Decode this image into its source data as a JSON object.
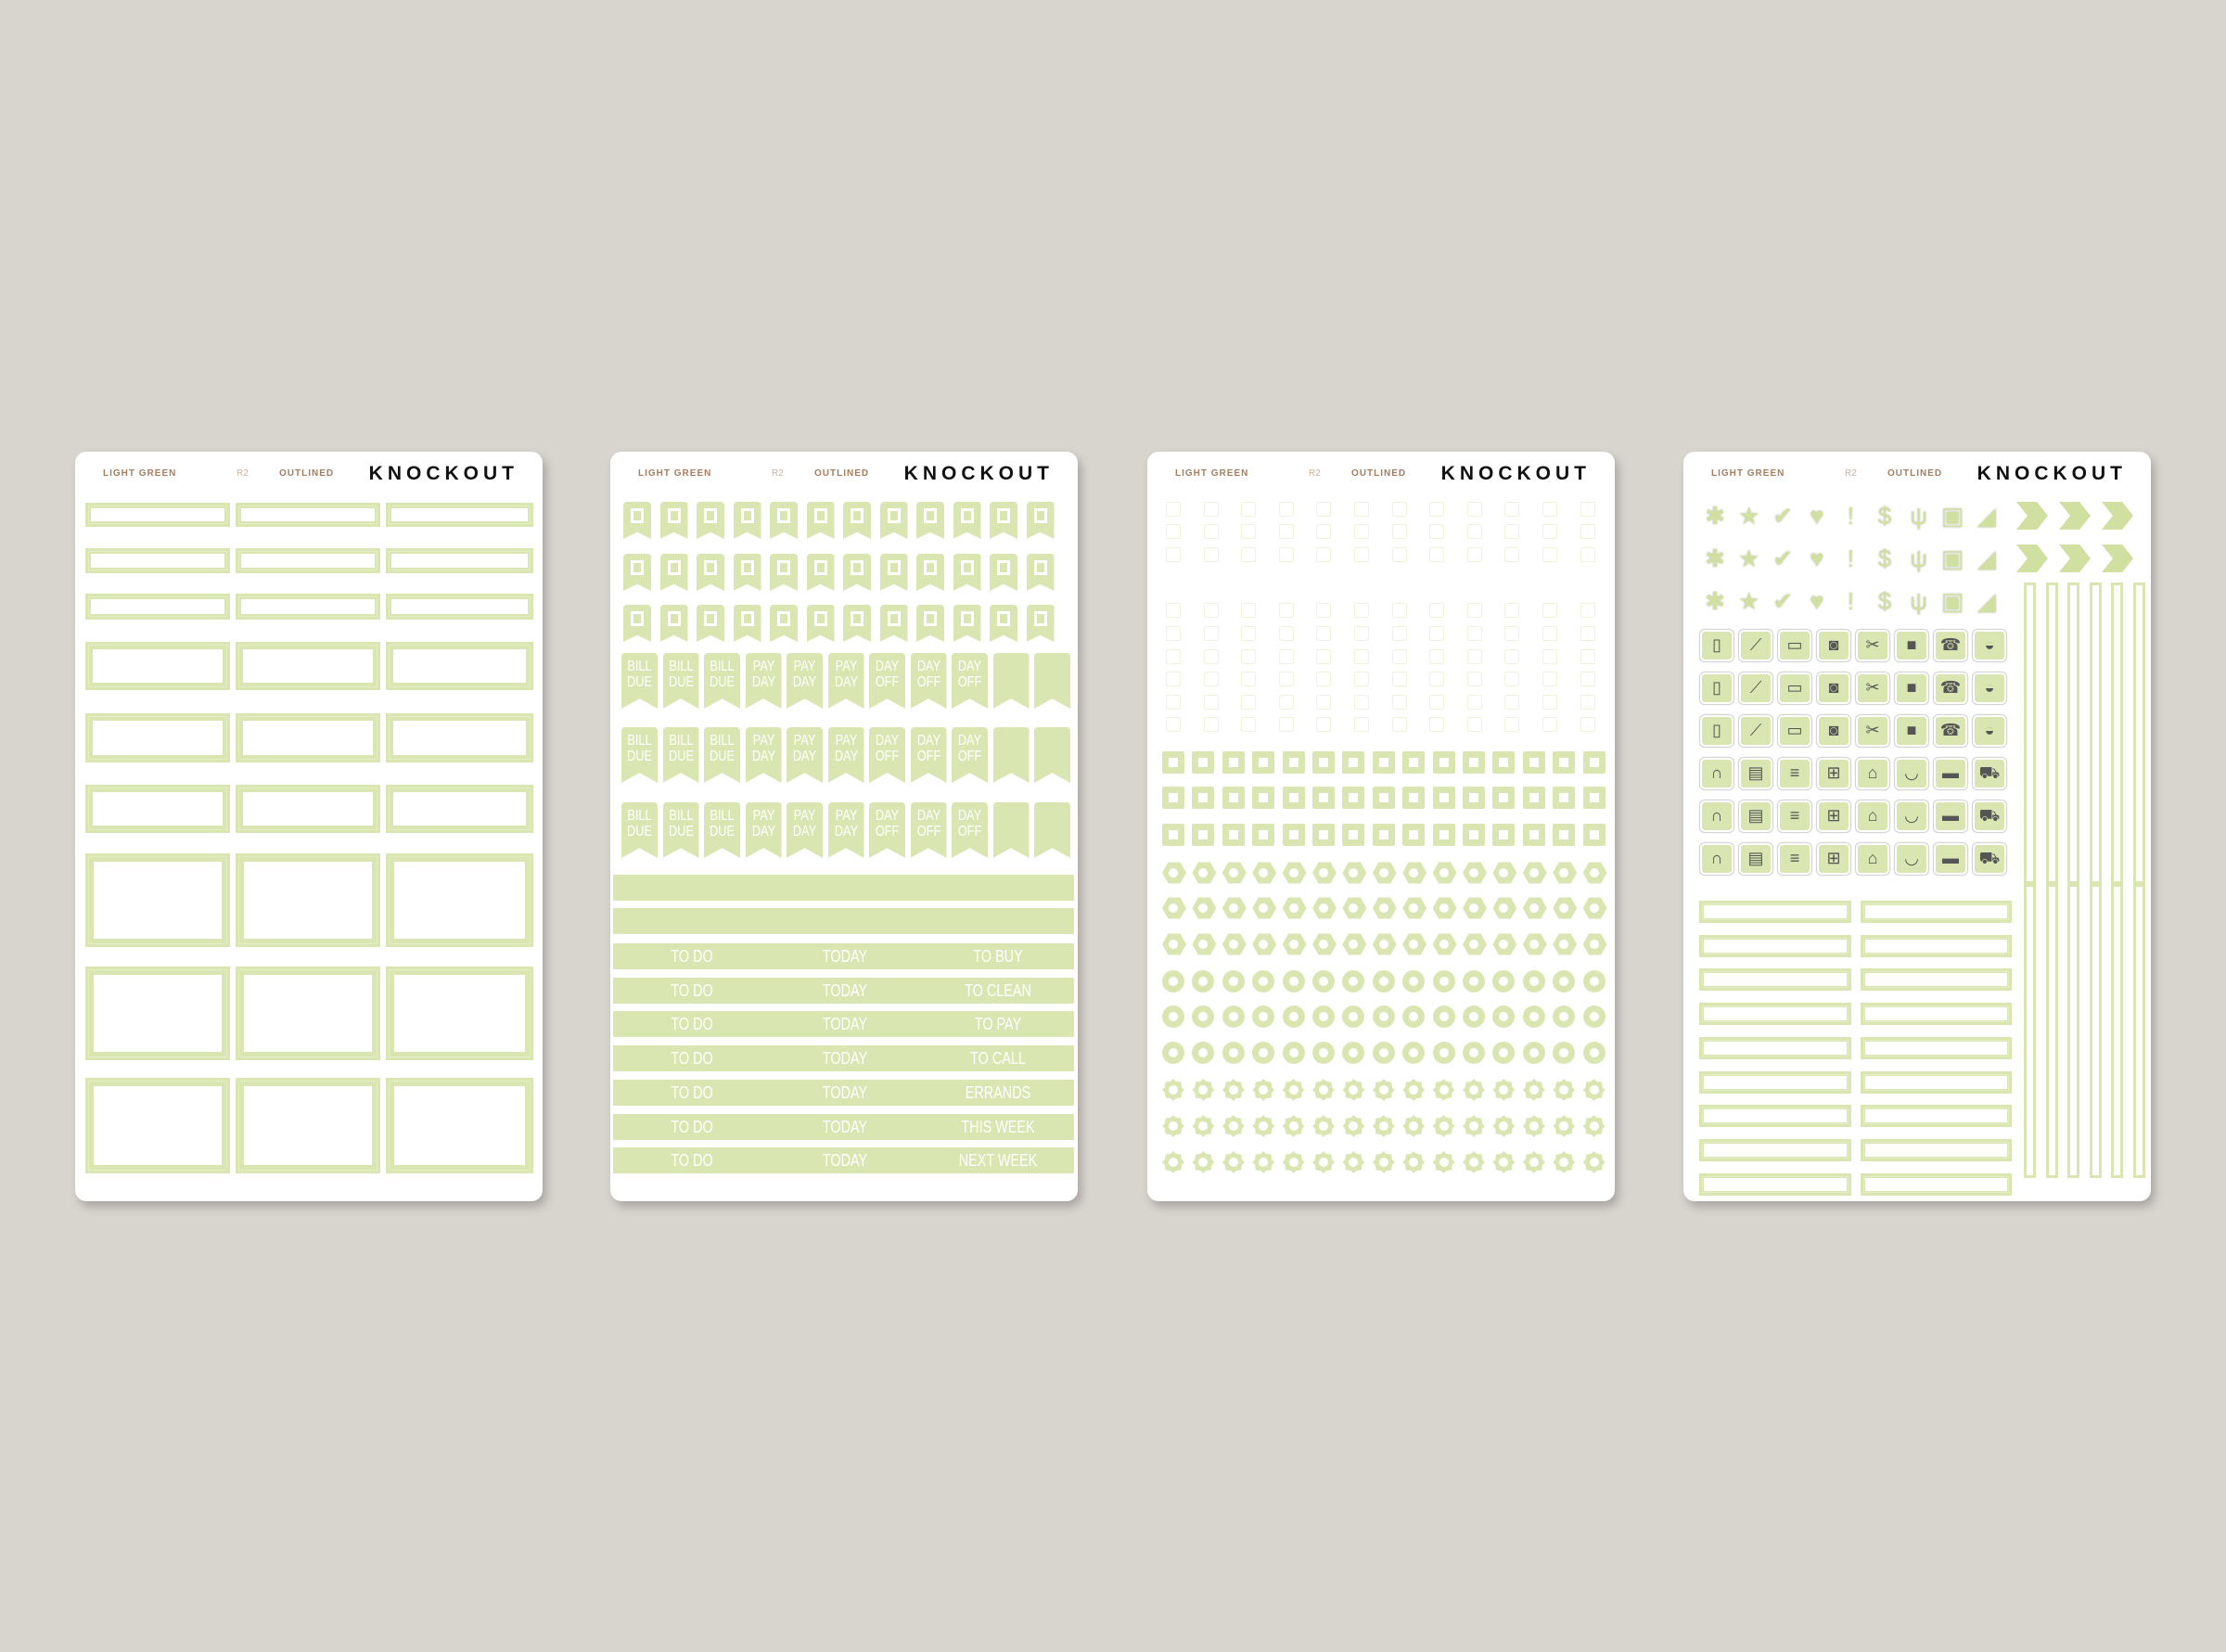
{
  "colors": {
    "background": "#d8d4ce",
    "sticker_green": "#dae6b1",
    "header_accent": "#a87d5e"
  },
  "sheets": [
    {
      "header": {
        "color": "LIGHT GREEN",
        "code": "R2",
        "style": "OUTLINED",
        "brand": "KNOCKOUT"
      }
    },
    {
      "header": {
        "color": "LIGHT GREEN",
        "code": "R2",
        "style": "OUTLINED",
        "brand": "KNOCKOUT"
      }
    },
    {
      "header": {
        "color": "LIGHT GREEN",
        "code": "R2",
        "style": "OUTLINED",
        "brand": "KNOCKOUT"
      }
    },
    {
      "header": {
        "color": "LIGHT GREEN",
        "code": "R2",
        "style": "OUTLINED",
        "brand": "KNOCKOUT"
      }
    }
  ],
  "sheet2": {
    "flag_labels": [
      [
        "BILL",
        "DUE"
      ],
      [
        "BILL",
        "DUE"
      ],
      [
        "BILL",
        "DUE"
      ],
      [
        "PAY",
        "DAY"
      ],
      [
        "PAY",
        "DAY"
      ],
      [
        "PAY",
        "DAY"
      ],
      [
        "DAY",
        "OFF"
      ],
      [
        "DAY",
        "OFF"
      ],
      [
        "DAY",
        "OFF"
      ],
      [
        "",
        ""
      ],
      [
        "",
        ""
      ]
    ],
    "bar_rows": [
      [
        "TO DO",
        "TODAY",
        "TO BUY"
      ],
      [
        "TO DO",
        "TODAY",
        "TO CLEAN"
      ],
      [
        "TO DO",
        "TODAY",
        "TO PAY"
      ],
      [
        "TO DO",
        "TODAY",
        "TO CALL"
      ],
      [
        "TO DO",
        "TODAY",
        "ERRANDS"
      ],
      [
        "TO DO",
        "TODAY",
        "THIS WEEK"
      ],
      [
        "TO DO",
        "TODAY",
        "NEXT WEEK"
      ]
    ]
  },
  "sheet3": {
    "shape_rows": [
      "square",
      "square",
      "square",
      "hexagon",
      "hexagon",
      "hexagon",
      "circle",
      "circle",
      "circle",
      "flower",
      "flower",
      "flower"
    ]
  },
  "sheet4": {
    "symbol_icons": [
      "asterisk-icon",
      "star-icon",
      "check-icon",
      "heart-icon",
      "exclamation-icon",
      "dollar-icon",
      "utensils-icon",
      "gift-icon",
      "sneaker-icon"
    ],
    "household_icons_a": [
      "trash-bin-icon",
      "vacuum-icon",
      "credit-card-icon",
      "washing-machine-icon",
      "scissors-icon",
      "video-call-icon",
      "telephone-icon",
      "car-icon"
    ],
    "household_icons_b": [
      "stethoscope-icon",
      "tv-icon",
      "book-icon",
      "shopping-cart-icon",
      "house-icon",
      "cup-icon",
      "tote-bag-icon",
      "delivery-truck-icon"
    ]
  }
}
